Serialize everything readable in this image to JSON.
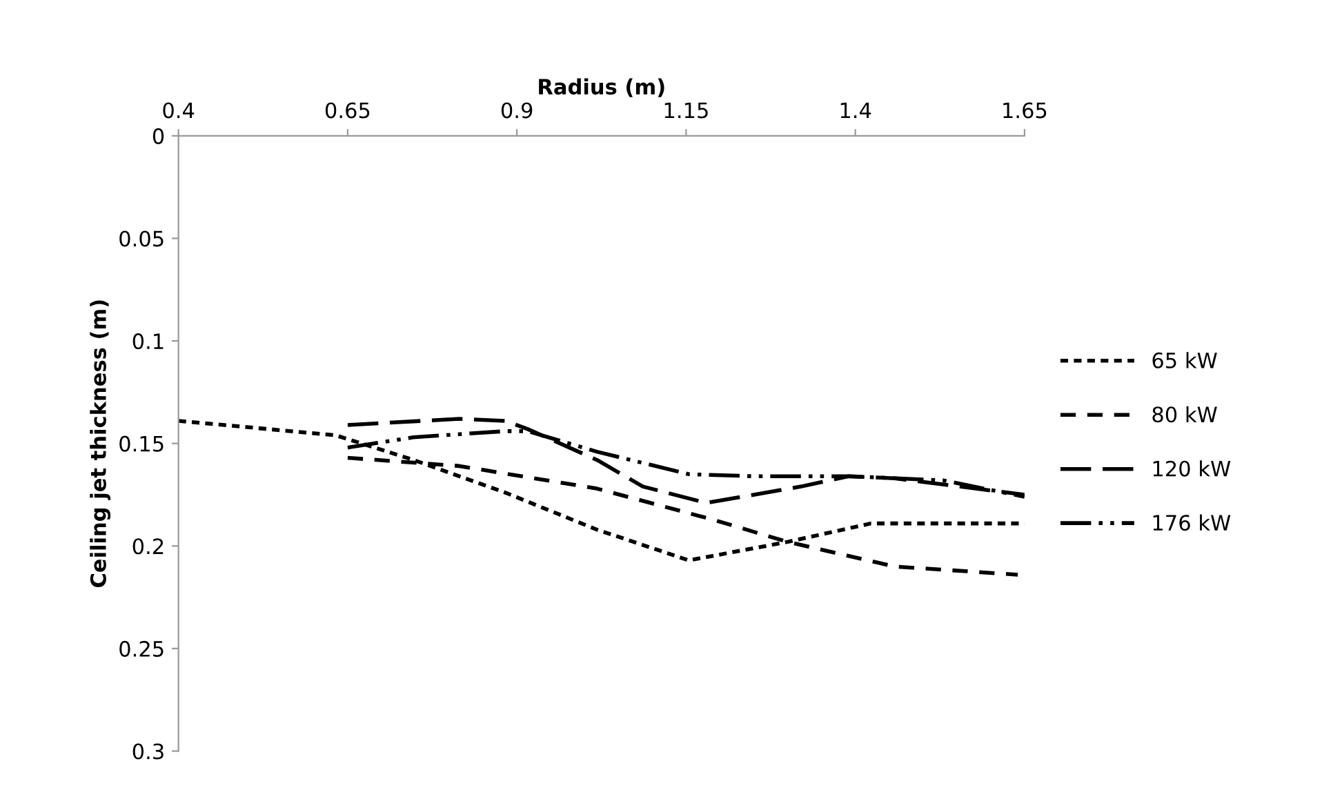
{
  "chart_data": {
    "type": "line",
    "xlabel": "Radius (m)",
    "ylabel": "Ceiling jet thickness (m)",
    "xlim": [
      0.4,
      1.65
    ],
    "xticks": [
      0.4,
      0.65,
      0.9,
      1.15,
      1.4,
      1.65
    ],
    "ylim": [
      0.3,
      0
    ],
    "yticks": [
      0,
      0.05,
      0.1,
      0.15,
      0.2,
      0.25,
      0.3
    ],
    "grid": false,
    "legend": "right",
    "marker": "none",
    "series": [
      {
        "name": "65 kW",
        "color": "#000000",
        "line_style": "dotted",
        "x": [
          0.4,
          0.632,
          0.747,
          0.883,
          1.018,
          1.154,
          1.3,
          1.423,
          1.65
        ],
        "values": [
          0.139,
          0.146,
          0.158,
          0.174,
          0.192,
          0.207,
          0.198,
          0.189,
          0.189
        ]
      },
      {
        "name": "80 kW",
        "color": "#000000",
        "line_style": "dashed",
        "x": [
          0.65,
          0.815,
          1.018,
          1.188,
          1.3,
          1.458,
          1.64
        ],
        "values": [
          0.157,
          0.161,
          0.172,
          0.187,
          0.198,
          0.21,
          0.214
        ]
      },
      {
        "name": "120 kW",
        "color": "#000000",
        "line_style": "long dashed",
        "x": [
          0.65,
          0.815,
          0.883,
          0.916,
          1.018,
          1.086,
          1.168,
          1.18,
          1.32,
          1.39,
          1.458,
          1.65
        ],
        "values": [
          0.141,
          0.138,
          0.139,
          0.143,
          0.158,
          0.171,
          0.178,
          0.179,
          0.171,
          0.166,
          0.167,
          0.175
        ]
      },
      {
        "name": "176 kW",
        "color": "#000000",
        "line_style": "dash dot dot",
        "x": [
          0.65,
          0.747,
          0.883,
          0.916,
          1.018,
          1.154,
          1.25,
          1.39,
          1.53,
          1.65
        ],
        "values": [
          0.152,
          0.147,
          0.144,
          0.144,
          0.154,
          0.165,
          0.166,
          0.166,
          0.168,
          0.176
        ]
      }
    ]
  }
}
